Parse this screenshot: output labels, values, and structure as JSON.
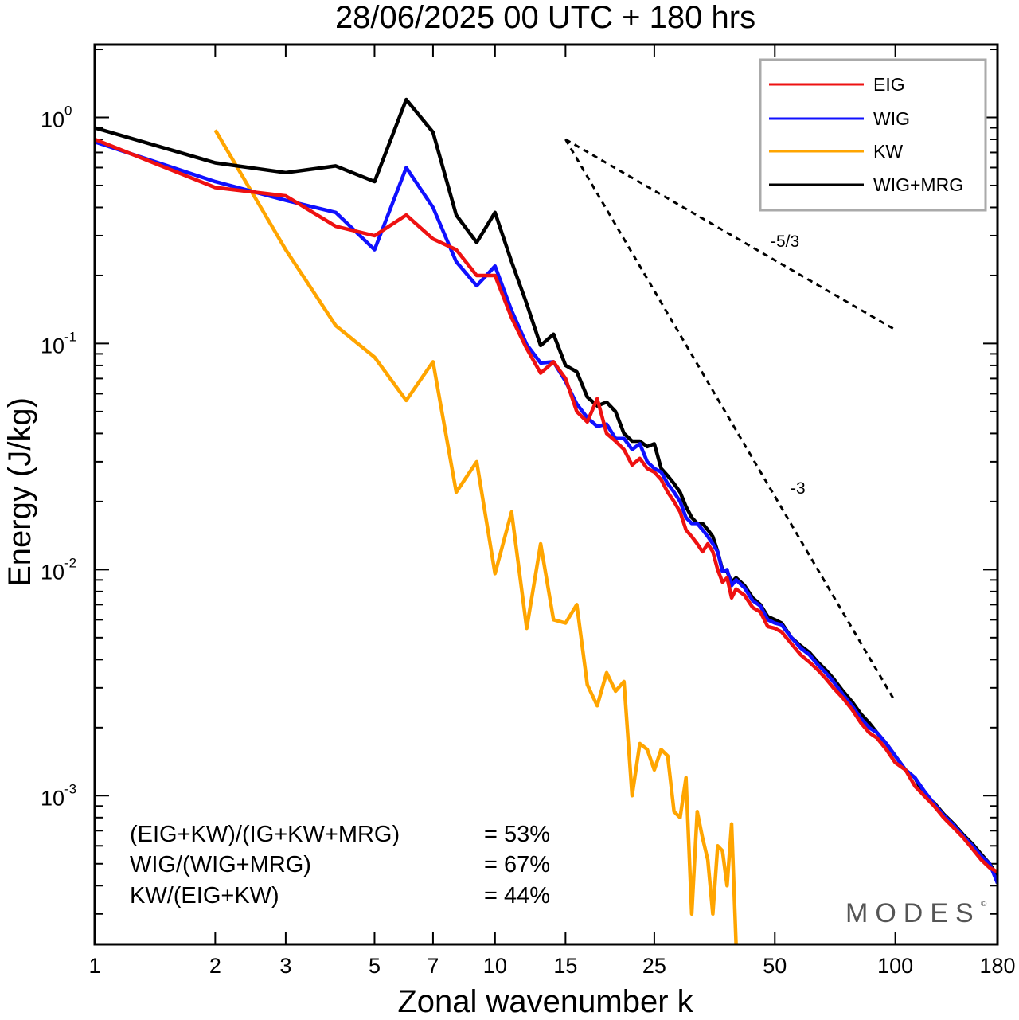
{
  "chart_data": {
    "type": "line",
    "title": "28/06/2025  00 UTC  + 180 hrs",
    "xlabel": "Zonal wavenumber k",
    "ylabel": "Energy (J/kg)",
    "xscale": "log",
    "yscale": "log",
    "xlim": [
      1,
      180
    ],
    "ylim": [
      0.00022,
      2.1
    ],
    "x_ticks": [
      1,
      2,
      3,
      5,
      7,
      10,
      15,
      25,
      50,
      100,
      180
    ],
    "y_ticks": [
      {
        "value": 1,
        "base": "10",
        "exp": "0"
      },
      {
        "value": 0.1,
        "base": "10",
        "exp": "-1"
      },
      {
        "value": 0.01,
        "base": "10",
        "exp": "-2"
      },
      {
        "value": 0.001,
        "base": "10",
        "exp": "-3"
      }
    ],
    "legend": {
      "position": "top-right",
      "entries": [
        "EIG",
        "WIG",
        "KW",
        "WIG+MRG"
      ]
    },
    "series": [
      {
        "name": "EIG",
        "color": "#ee1111",
        "points": [
          [
            1,
            0.8
          ],
          [
            2,
            0.49
          ],
          [
            3,
            0.45
          ],
          [
            4,
            0.33
          ],
          [
            5,
            0.3
          ],
          [
            6,
            0.37
          ],
          [
            7,
            0.29
          ],
          [
            8,
            0.26
          ],
          [
            9,
            0.2
          ],
          [
            10,
            0.2
          ],
          [
            11,
            0.13
          ],
          [
            12,
            0.095
          ],
          [
            13,
            0.074
          ],
          [
            14,
            0.083
          ],
          [
            15,
            0.07
          ],
          [
            16,
            0.05
          ],
          [
            17,
            0.045
          ],
          [
            18,
            0.057
          ],
          [
            19,
            0.04
          ],
          [
            20,
            0.037
          ],
          [
            21,
            0.034
          ],
          [
            22,
            0.029
          ],
          [
            23,
            0.031
          ],
          [
            24,
            0.028
          ],
          [
            25,
            0.027
          ],
          [
            26,
            0.025
          ],
          [
            27,
            0.022
          ],
          [
            28,
            0.02
          ],
          [
            29,
            0.018
          ],
          [
            30,
            0.015
          ],
          [
            31,
            0.014
          ],
          [
            32,
            0.013
          ],
          [
            33,
            0.012
          ],
          [
            34,
            0.013
          ],
          [
            35,
            0.012
          ],
          [
            36,
            0.01
          ],
          [
            37,
            0.0088
          ],
          [
            38,
            0.0092
          ],
          [
            39,
            0.0075
          ],
          [
            40,
            0.0082
          ],
          [
            42,
            0.0077
          ],
          [
            44,
            0.0068
          ],
          [
            46,
            0.0065
          ],
          [
            48,
            0.0056
          ],
          [
            50,
            0.0055
          ],
          [
            52,
            0.0053
          ],
          [
            55,
            0.0047
          ],
          [
            58,
            0.0042
          ],
          [
            61,
            0.0039
          ],
          [
            64,
            0.0036
          ],
          [
            67,
            0.0033
          ],
          [
            70,
            0.003
          ],
          [
            74,
            0.0027
          ],
          [
            78,
            0.0024
          ],
          [
            82,
            0.0021
          ],
          [
            86,
            0.0019
          ],
          [
            90,
            0.0018
          ],
          [
            95,
            0.0016
          ],
          [
            100,
            0.0014
          ],
          [
            106,
            0.0013
          ],
          [
            112,
            0.0011
          ],
          [
            118,
            0.001
          ],
          [
            125,
            0.0009
          ],
          [
            132,
            0.0008
          ],
          [
            140,
            0.00072
          ],
          [
            148,
            0.00065
          ],
          [
            156,
            0.00058
          ],
          [
            164,
            0.00052
          ],
          [
            172,
            0.00048
          ],
          [
            180,
            0.00046
          ]
        ]
      },
      {
        "name": "WIG",
        "color": "#1010ff",
        "points": [
          [
            1,
            0.78
          ],
          [
            2,
            0.52
          ],
          [
            3,
            0.43
          ],
          [
            4,
            0.38
          ],
          [
            5,
            0.26
          ],
          [
            6,
            0.6
          ],
          [
            7,
            0.4
          ],
          [
            8,
            0.23
          ],
          [
            9,
            0.18
          ],
          [
            10,
            0.22
          ],
          [
            11,
            0.14
          ],
          [
            12,
            0.099
          ],
          [
            13,
            0.082
          ],
          [
            14,
            0.083
          ],
          [
            15,
            0.068
          ],
          [
            16,
            0.054
          ],
          [
            17,
            0.047
          ],
          [
            18,
            0.043
          ],
          [
            19,
            0.044
          ],
          [
            20,
            0.038
          ],
          [
            21,
            0.038
          ],
          [
            22,
            0.034
          ],
          [
            23,
            0.036
          ],
          [
            24,
            0.03
          ],
          [
            25,
            0.028
          ],
          [
            26,
            0.027
          ],
          [
            27,
            0.024
          ],
          [
            28,
            0.022
          ],
          [
            29,
            0.02
          ],
          [
            30,
            0.017
          ],
          [
            31,
            0.016
          ],
          [
            32,
            0.016
          ],
          [
            33,
            0.015
          ],
          [
            34,
            0.014
          ],
          [
            35,
            0.013
          ],
          [
            36,
            0.012
          ],
          [
            37,
            0.0098
          ],
          [
            38,
            0.01
          ],
          [
            39,
            0.0085
          ],
          [
            40,
            0.009
          ],
          [
            42,
            0.0083
          ],
          [
            44,
            0.0073
          ],
          [
            46,
            0.0069
          ],
          [
            48,
            0.006
          ],
          [
            50,
            0.0058
          ],
          [
            52,
            0.0057
          ],
          [
            55,
            0.005
          ],
          [
            58,
            0.0045
          ],
          [
            61,
            0.0042
          ],
          [
            64,
            0.0038
          ],
          [
            67,
            0.0035
          ],
          [
            70,
            0.0032
          ],
          [
            74,
            0.0028
          ],
          [
            78,
            0.0025
          ],
          [
            82,
            0.0022
          ],
          [
            86,
            0.002
          ],
          [
            90,
            0.0019
          ],
          [
            95,
            0.0017
          ],
          [
            100,
            0.0015
          ],
          [
            106,
            0.0013
          ],
          [
            112,
            0.0012
          ],
          [
            118,
            0.00105
          ],
          [
            125,
            0.00092
          ],
          [
            132,
            0.00082
          ],
          [
            140,
            0.00074
          ],
          [
            148,
            0.00066
          ],
          [
            156,
            0.0006
          ],
          [
            164,
            0.00054
          ],
          [
            172,
            0.0005
          ],
          [
            180,
            0.00041
          ]
        ]
      },
      {
        "name": "KW",
        "color": "#ffa500",
        "points": [
          [
            2,
            0.88
          ],
          [
            3,
            0.26
          ],
          [
            4,
            0.12
          ],
          [
            5,
            0.087
          ],
          [
            6,
            0.056
          ],
          [
            7,
            0.083
          ],
          [
            8,
            0.022
          ],
          [
            9,
            0.03
          ],
          [
            10,
            0.0096
          ],
          [
            11,
            0.018
          ],
          [
            12,
            0.0055
          ],
          [
            13,
            0.013
          ],
          [
            14,
            0.006
          ],
          [
            15,
            0.0058
          ],
          [
            16,
            0.007
          ],
          [
            17,
            0.0031
          ],
          [
            18,
            0.0025
          ],
          [
            19,
            0.0035
          ],
          [
            20,
            0.0029
          ],
          [
            21,
            0.0032
          ],
          [
            22,
            0.001
          ],
          [
            23,
            0.0017
          ],
          [
            24,
            0.0016
          ],
          [
            25,
            0.0013
          ],
          [
            26,
            0.0016
          ],
          [
            27,
            0.0015
          ],
          [
            28,
            0.00085
          ],
          [
            29,
            0.0008
          ],
          [
            30,
            0.0012
          ],
          [
            31,
            0.0003
          ],
          [
            32,
            0.00085
          ],
          [
            33,
            0.00065
          ],
          [
            34,
            0.00052
          ],
          [
            35,
            0.0003
          ],
          [
            36,
            0.0006
          ],
          [
            37,
            0.00057
          ],
          [
            38,
            0.0004
          ],
          [
            39,
            0.00075
          ],
          [
            40,
            0.00022
          ]
        ]
      },
      {
        "name": "WIG+MRG",
        "color": "#000000",
        "points": [
          [
            1,
            0.9
          ],
          [
            2,
            0.63
          ],
          [
            3,
            0.57
          ],
          [
            4,
            0.61
          ],
          [
            5,
            0.52
          ],
          [
            6,
            1.2
          ],
          [
            7,
            0.86
          ],
          [
            8,
            0.37
          ],
          [
            9,
            0.28
          ],
          [
            10,
            0.38
          ],
          [
            11,
            0.23
          ],
          [
            12,
            0.15
          ],
          [
            13,
            0.098
          ],
          [
            14,
            0.11
          ],
          [
            15,
            0.08
          ],
          [
            16,
            0.075
          ],
          [
            17,
            0.058
          ],
          [
            18,
            0.053
          ],
          [
            19,
            0.055
          ],
          [
            20,
            0.05
          ],
          [
            21,
            0.04
          ],
          [
            22,
            0.037
          ],
          [
            23,
            0.037
          ],
          [
            24,
            0.035
          ],
          [
            25,
            0.036
          ],
          [
            26,
            0.028
          ],
          [
            27,
            0.026
          ],
          [
            28,
            0.024
          ],
          [
            29,
            0.022
          ],
          [
            30,
            0.019
          ],
          [
            31,
            0.017
          ],
          [
            32,
            0.016
          ],
          [
            33,
            0.016
          ],
          [
            34,
            0.015
          ],
          [
            35,
            0.014
          ],
          [
            36,
            0.012
          ],
          [
            37,
            0.01
          ],
          [
            38,
            0.0098
          ],
          [
            39,
            0.0088
          ],
          [
            40,
            0.0092
          ],
          [
            42,
            0.0085
          ],
          [
            44,
            0.0075
          ],
          [
            46,
            0.007
          ],
          [
            48,
            0.0062
          ],
          [
            50,
            0.006
          ],
          [
            52,
            0.0058
          ],
          [
            55,
            0.005
          ],
          [
            58,
            0.0046
          ],
          [
            61,
            0.0043
          ],
          [
            64,
            0.0039
          ],
          [
            67,
            0.0036
          ],
          [
            70,
            0.0033
          ],
          [
            74,
            0.0029
          ],
          [
            78,
            0.0026
          ],
          [
            82,
            0.0023
          ],
          [
            86,
            0.0021
          ],
          [
            90,
            0.0019
          ],
          [
            95,
            0.0017
          ],
          [
            100,
            0.0015
          ],
          [
            106,
            0.0013
          ],
          [
            112,
            0.0012
          ],
          [
            118,
            0.001
          ],
          [
            125,
            0.00093
          ],
          [
            132,
            0.00083
          ],
          [
            140,
            0.00075
          ],
          [
            148,
            0.00067
          ],
          [
            156,
            0.00061
          ],
          [
            164,
            0.00055
          ],
          [
            172,
            0.0005
          ],
          [
            180,
            0.00044
          ]
        ]
      }
    ],
    "reference_lines": [
      {
        "label": "-5/3",
        "from": [
          15,
          0.8
        ],
        "to": [
          100,
          0.115
        ]
      },
      {
        "label": "-3",
        "from": [
          15,
          0.8
        ],
        "to": [
          100,
          0.0026
        ]
      }
    ],
    "stats": [
      {
        "label": "(EIG+KW)/(IG+KW+MRG)",
        "value": "= 53%"
      },
      {
        "label": "WIG/(WIG+MRG)",
        "value": "= 67%"
      },
      {
        "label": "KW/(EIG+KW)",
        "value": "= 44%"
      }
    ],
    "watermark": "MODES",
    "watermark_mark": "©"
  }
}
